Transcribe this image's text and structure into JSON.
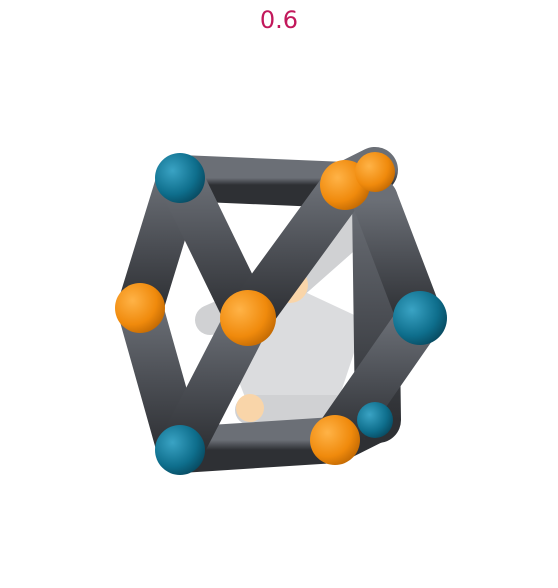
{
  "header": {
    "value_text": "0.6"
  },
  "colors": {
    "label": "#c2185b",
    "rod": "#4c4f55",
    "node_orange": "#f08a0c",
    "node_teal": "#0e6e8c",
    "background": "#ffffff"
  }
}
